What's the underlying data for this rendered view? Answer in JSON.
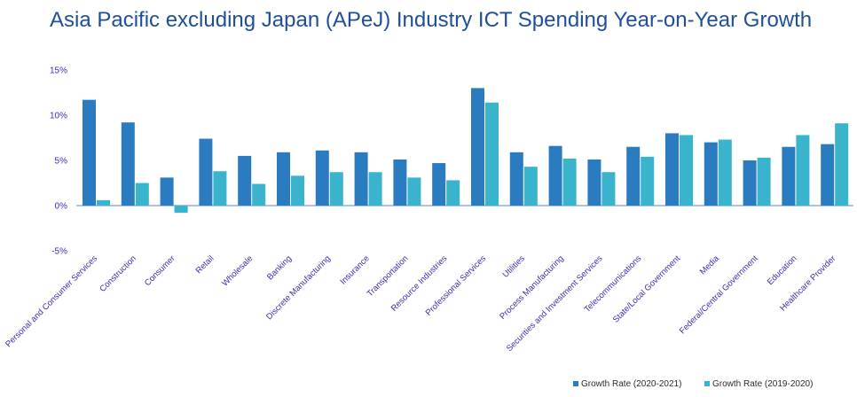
{
  "chart_data": {
    "type": "bar",
    "title": "Asia Pacific excluding Japan (APeJ) Industry ICT Spending Year-on-Year Growth",
    "xlabel": "",
    "ylabel": "",
    "ylim": [
      -5,
      15
    ],
    "yticks": [
      -5,
      0,
      5,
      10,
      15
    ],
    "ytick_labels": [
      "-5%",
      "0%",
      "5%",
      "10%",
      "15%"
    ],
    "grid": false,
    "legend": "bottom-right",
    "categories": [
      "Personal and Consumer Services",
      "Construction",
      "Consumer",
      "Retail",
      "Wholesale",
      "Banking",
      "Discrete Manufacturing",
      "Insurance",
      "Transportation",
      "Resource Industries",
      "Professional Services",
      "Utilities",
      "Process Manufacturing",
      "Securities and Investment Services",
      "Telecommunications",
      "State/Local Government",
      "Media",
      "Federal/Central Government",
      "Education",
      "Healthcare Provider"
    ],
    "series": [
      {
        "name": "Growth Rate (2020-2021)",
        "color": "#2a7bc0",
        "values": [
          11.7,
          9.2,
          3.1,
          7.4,
          5.5,
          5.9,
          6.1,
          5.9,
          5.1,
          4.7,
          13.0,
          5.9,
          6.6,
          5.1,
          6.5,
          8.0,
          7.0,
          5.0,
          6.5,
          6.8
        ]
      },
      {
        "name": "Growth Rate (2019-2020)",
        "color": "#39b4cc",
        "values": [
          0.6,
          2.5,
          -0.8,
          3.8,
          2.4,
          3.3,
          3.7,
          3.7,
          3.1,
          2.8,
          11.4,
          4.3,
          5.2,
          3.7,
          5.4,
          7.8,
          7.3,
          5.3,
          7.8,
          9.1
        ]
      }
    ]
  }
}
